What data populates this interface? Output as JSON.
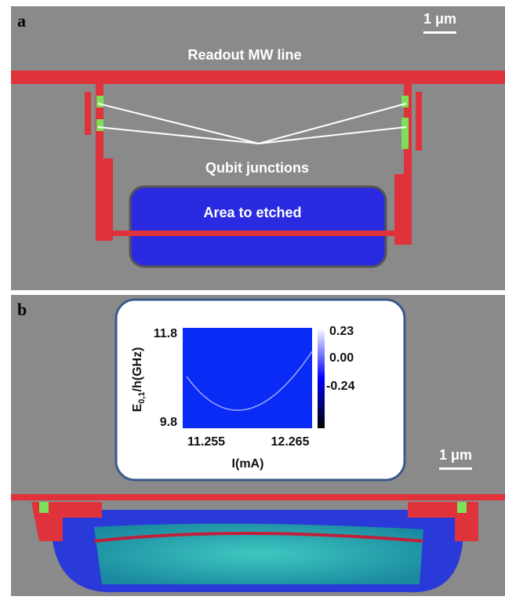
{
  "panels": [
    {
      "label": "a",
      "scale_bar": "1 μm",
      "annotations": [
        "Readout MW line",
        "Qubit junctions",
        "Area to etched"
      ]
    },
    {
      "label": "b",
      "scale_bar": "1 μm",
      "inset": {
        "y_label": {
          "main": "E",
          "sub": "0,1",
          "rest": "/h(GHz)"
        },
        "x_label": "I(mA)",
        "yticks": [
          "11.8",
          "9.8"
        ],
        "xticks": [
          "11.255",
          "12.265"
        ],
        "colorbar_ticks": [
          "0.23",
          "0.00",
          "-0.24"
        ]
      }
    }
  ]
}
